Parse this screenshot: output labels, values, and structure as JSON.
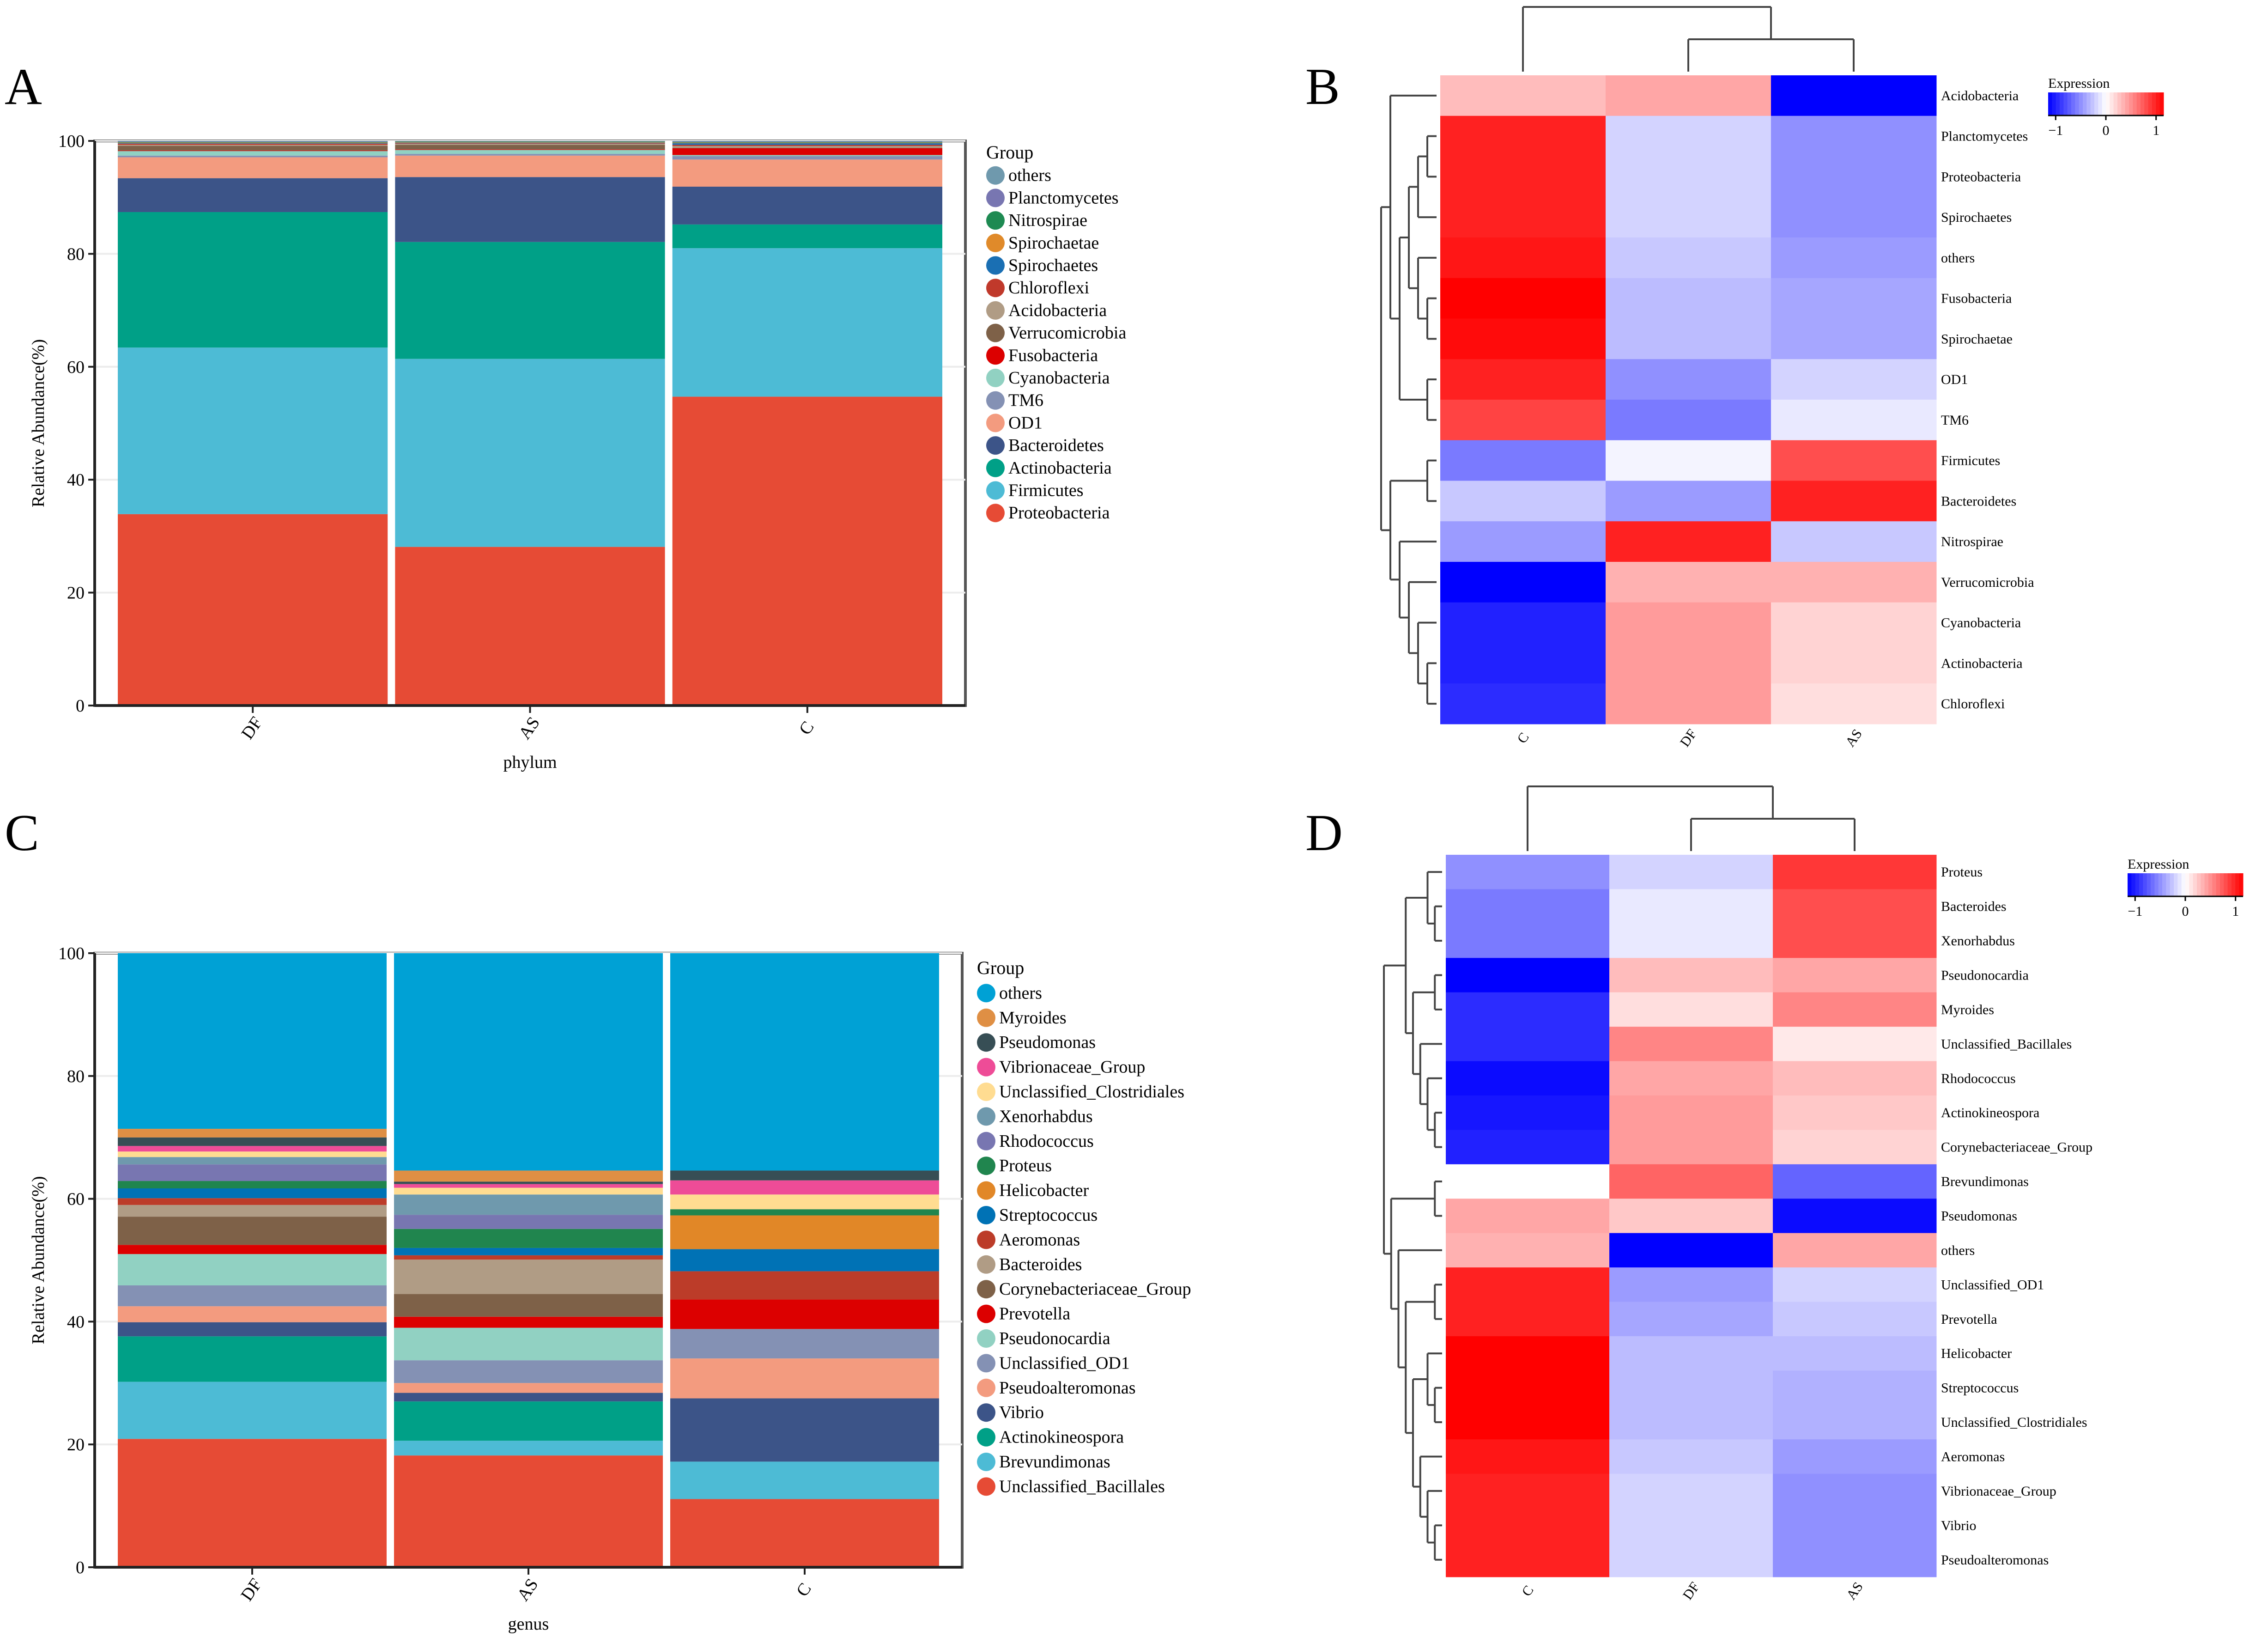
{
  "panels": {
    "a": "A",
    "b": "B",
    "c": "C",
    "d": "D"
  },
  "chart_data": [
    {
      "type": "bar",
      "stacked": true,
      "panel": "A",
      "xlabel": "phylum",
      "ylabel": "Relative Abundance(%)",
      "ylim": [
        0,
        100
      ],
      "yticks": [
        0,
        20,
        40,
        60,
        80,
        100
      ],
      "grid": true,
      "legend_title": "Group",
      "legend_position": "right",
      "categories": [
        "DF",
        "AS",
        "C"
      ],
      "series": [
        {
          "name": "Proteobacteria",
          "color": "#e64b35",
          "values": [
            33.9,
            28.1,
            54.7
          ]
        },
        {
          "name": "Firmicutes",
          "color": "#4dbbd5",
          "values": [
            29.5,
            33.3,
            26.3
          ]
        },
        {
          "name": "Actinobacteria",
          "color": "#00a087",
          "values": [
            24.0,
            20.7,
            4.2
          ]
        },
        {
          "name": "Bacteroidetes",
          "color": "#3c5488",
          "values": [
            6.0,
            11.5,
            6.7
          ]
        },
        {
          "name": "OD1",
          "color": "#f39b7f",
          "values": [
            3.7,
            3.8,
            4.8
          ]
        },
        {
          "name": "TM6",
          "color": "#8491b4",
          "values": [
            0.3,
            0.3,
            0.6
          ]
        },
        {
          "name": "Cyanobacteria",
          "color": "#91d1c2",
          "values": [
            0.8,
            0.7,
            0.2
          ]
        },
        {
          "name": "Fusobacteria",
          "color": "#dc0000",
          "values": [
            0.1,
            0.1,
            1.2
          ]
        },
        {
          "name": "Verrucomicrobia",
          "color": "#7e6148",
          "values": [
            0.8,
            0.8,
            0.1
          ]
        },
        {
          "name": "Acidobacteria",
          "color": "#b09c85",
          "values": [
            0.2,
            0.2,
            0.3
          ]
        },
        {
          "name": "Chloroflexi",
          "color": "#c0392b",
          "values": [
            0.2,
            0.1,
            0.2
          ]
        },
        {
          "name": "Spirochaetes",
          "color": "#1a6fb3",
          "values": [
            0.1,
            0.1,
            0.3
          ]
        },
        {
          "name": "Spirochaetae",
          "color": "#e08a2a",
          "values": [
            0.1,
            0.1,
            0.1
          ]
        },
        {
          "name": "Nitrospirae",
          "color": "#1e8a52",
          "values": [
            0.1,
            0.1,
            0.1
          ]
        },
        {
          "name": "Planctomycetes",
          "color": "#7876b1",
          "values": [
            0.1,
            0.05,
            0.1
          ]
        },
        {
          "name": "others",
          "color": "#6f99ad",
          "values": [
            0.1,
            0.05,
            0.1
          ]
        }
      ]
    },
    {
      "type": "heatmap",
      "panel": "B",
      "legend_title": "Expression",
      "legend_ticks": [
        -1,
        0,
        1
      ],
      "range": [
        -1.15,
        1.15
      ],
      "columns": [
        "C",
        "DF",
        "AS"
      ],
      "rows": [
        "Acidobacteria",
        "Planctomycetes",
        "Proteobacteria",
        "Spirochaetes",
        "others",
        "Fusobacteria",
        "Spirochaetae",
        "OD1",
        "TM6",
        "Firmicutes",
        "Bacteroidetes",
        "Nitrospirae",
        "Verrucomicrobia",
        "Cyanobacteria",
        "Actinobacteria",
        "Chloroflexi"
      ],
      "values": [
        [
          0.3,
          0.4,
          -1.15
        ],
        [
          1.0,
          -0.2,
          -0.5
        ],
        [
          1.0,
          -0.2,
          -0.5
        ],
        [
          1.0,
          -0.2,
          -0.5
        ],
        [
          1.05,
          -0.25,
          -0.45
        ],
        [
          1.15,
          -0.3,
          -0.4
        ],
        [
          1.1,
          -0.3,
          -0.4
        ],
        [
          1.0,
          -0.5,
          -0.2
        ],
        [
          0.85,
          -0.6,
          -0.1
        ],
        [
          -0.6,
          -0.05,
          0.8
        ],
        [
          -0.25,
          -0.45,
          1.0
        ],
        [
          -0.45,
          1.0,
          -0.25
        ],
        [
          -1.15,
          0.35,
          0.35
        ],
        [
          -1.0,
          0.45,
          0.2
        ],
        [
          -1.0,
          0.45,
          0.2
        ],
        [
          -0.95,
          0.45,
          0.15
        ]
      ],
      "col_tree": [
        0,
        [
          1,
          2
        ]
      ],
      "row_tree": [
        [
          0,
          [
            [
              [
                [
                  1,
                  2
                ],
                3
              ],
              [
                4,
                [
                  5,
                  6
                ]
              ]
            ],
            [
              7,
              8
            ]
          ]
        ],
        [
          [
            9,
            10
          ],
          [
            11,
            [
              12,
              [
                13,
                [
                  14,
                  15
                ]
              ]
            ]
          ]
        ]
      ]
    },
    {
      "type": "bar",
      "stacked": true,
      "panel": "C",
      "xlabel": "genus",
      "ylabel": "Relative Abundance(%)",
      "ylim": [
        0,
        100
      ],
      "yticks": [
        0,
        20,
        40,
        60,
        80,
        100
      ],
      "grid": true,
      "legend_title": "Group",
      "legend_position": "right",
      "categories": [
        "DF",
        "AS",
        "C"
      ],
      "series": [
        {
          "name": "Unclassified_Bacillales",
          "color": "#e64b35",
          "values": [
            20.9,
            18.2,
            11.1
          ]
        },
        {
          "name": "Brevundimonas",
          "color": "#4dbbd5",
          "values": [
            9.3,
            2.4,
            6.1
          ]
        },
        {
          "name": "Actinokineospora",
          "color": "#00a087",
          "values": [
            7.4,
            6.4,
            0.0
          ]
        },
        {
          "name": "Vibrio",
          "color": "#3c5488",
          "values": [
            2.3,
            1.4,
            10.3
          ]
        },
        {
          "name": "Pseudoalteromonas",
          "color": "#f39b7f",
          "values": [
            2.6,
            1.6,
            6.5
          ]
        },
        {
          "name": "Unclassified_OD1",
          "color": "#8491b4",
          "values": [
            3.4,
            3.7,
            4.8
          ]
        },
        {
          "name": "Pseudonocardia",
          "color": "#91d1c2",
          "values": [
            5.1,
            5.3,
            0.0
          ]
        },
        {
          "name": "Prevotella",
          "color": "#dc0000",
          "values": [
            1.5,
            1.8,
            4.8
          ]
        },
        {
          "name": "Corynebacteriaceae_Group",
          "color": "#7e6148",
          "values": [
            4.6,
            3.7,
            0.0
          ]
        },
        {
          "name": "Bacteroides",
          "color": "#b09c85",
          "values": [
            1.9,
            5.6,
            0.0
          ]
        },
        {
          "name": "Aeromonas",
          "color": "#bc3c29",
          "values": [
            1.1,
            0.7,
            4.6
          ]
        },
        {
          "name": "Streptococcus",
          "color": "#0072b5",
          "values": [
            1.6,
            1.2,
            3.6
          ]
        },
        {
          "name": "Helicobacter",
          "color": "#e18727",
          "values": [
            0.0,
            0.0,
            5.5
          ]
        },
        {
          "name": "Proteus",
          "color": "#20854e",
          "values": [
            1.2,
            3.1,
            1.0
          ]
        },
        {
          "name": "Rhodococcus",
          "color": "#7876b1",
          "values": [
            2.7,
            2.3,
            0.0
          ]
        },
        {
          "name": "Xenorhabdus",
          "color": "#6f99ad",
          "values": [
            1.2,
            3.3,
            0.0
          ]
        },
        {
          "name": "Unclassified_Clostridiales",
          "color": "#ffdc91",
          "values": [
            0.9,
            1.1,
            2.4
          ]
        },
        {
          "name": "Vibrionaceae_Group",
          "color": "#ee4c97",
          "values": [
            0.9,
            0.6,
            2.3
          ]
        },
        {
          "name": "Pseudomonas",
          "color": "#374e55",
          "values": [
            1.4,
            0.4,
            1.6
          ]
        },
        {
          "name": "Myroides",
          "color": "#df8f44",
          "values": [
            1.4,
            1.8,
            0.0
          ]
        },
        {
          "name": "others",
          "color": "#00a1d5",
          "values": [
            28.6,
            35.4,
            35.4
          ]
        }
      ]
    },
    {
      "type": "heatmap",
      "panel": "D",
      "legend_title": "Expression",
      "legend_ticks": [
        -1,
        0,
        1
      ],
      "range": [
        -1.15,
        1.15
      ],
      "columns": [
        "C",
        "DF",
        "AS"
      ],
      "rows": [
        "Proteus",
        "Bacteroides",
        "Xenorhabdus",
        "Pseudonocardia",
        "Myroides",
        "Unclassified_Bacillales",
        "Rhodococcus",
        "Actinokineospora",
        "Corynebacteriaceae_Group",
        "Brevundimonas",
        "Pseudomonas",
        "others",
        "Unclassified_OD1",
        "Prevotella",
        "Helicobacter",
        "Streptococcus",
        "Unclassified_Clostridiales",
        "Aeromonas",
        "Vibrionaceae_Group",
        "Vibrio",
        "Pseudoalteromonas"
      ],
      "values": [
        [
          -0.5,
          -0.2,
          0.9
        ],
        [
          -0.6,
          -0.1,
          0.8
        ],
        [
          -0.6,
          -0.1,
          0.8
        ],
        [
          -1.15,
          0.3,
          0.4
        ],
        [
          -0.95,
          0.15,
          0.55
        ],
        [
          -0.95,
          0.55,
          0.1
        ],
        [
          -1.1,
          0.4,
          0.3
        ],
        [
          -1.05,
          0.45,
          0.25
        ],
        [
          -1.0,
          0.45,
          0.2
        ],
        [
          0.0,
          0.7,
          -0.7
        ],
        [
          0.4,
          0.25,
          -1.1
        ],
        [
          0.35,
          -1.15,
          0.4
        ],
        [
          1.0,
          -0.45,
          -0.2
        ],
        [
          1.0,
          -0.4,
          -0.25
        ],
        [
          1.15,
          -0.3,
          -0.3
        ],
        [
          1.15,
          -0.3,
          -0.35
        ],
        [
          1.15,
          -0.3,
          -0.35
        ],
        [
          1.05,
          -0.25,
          -0.45
        ],
        [
          1.0,
          -0.2,
          -0.5
        ],
        [
          1.0,
          -0.2,
          -0.5
        ],
        [
          1.0,
          -0.2,
          -0.5
        ]
      ],
      "col_tree": [
        0,
        [
          1,
          2
        ]
      ],
      "row_tree": [
        [
          [
            0,
            [
              1,
              2
            ]
          ],
          [
            [
              3,
              4
            ],
            [
              5,
              [
                6,
                [
                  7,
                  8
                ]
              ]
            ]
          ]
        ],
        [
          [
            9,
            10
          ],
          [
            11,
            [
              [
                12,
                13
              ],
              [
                [
                  14,
                  [
                    15,
                    16
                  ]
                ],
                [
                  17,
                  [
                    18,
                    [
                      19,
                      20
                    ]
                  ]
                ]
              ]
            ]
          ]
        ]
      ]
    }
  ]
}
